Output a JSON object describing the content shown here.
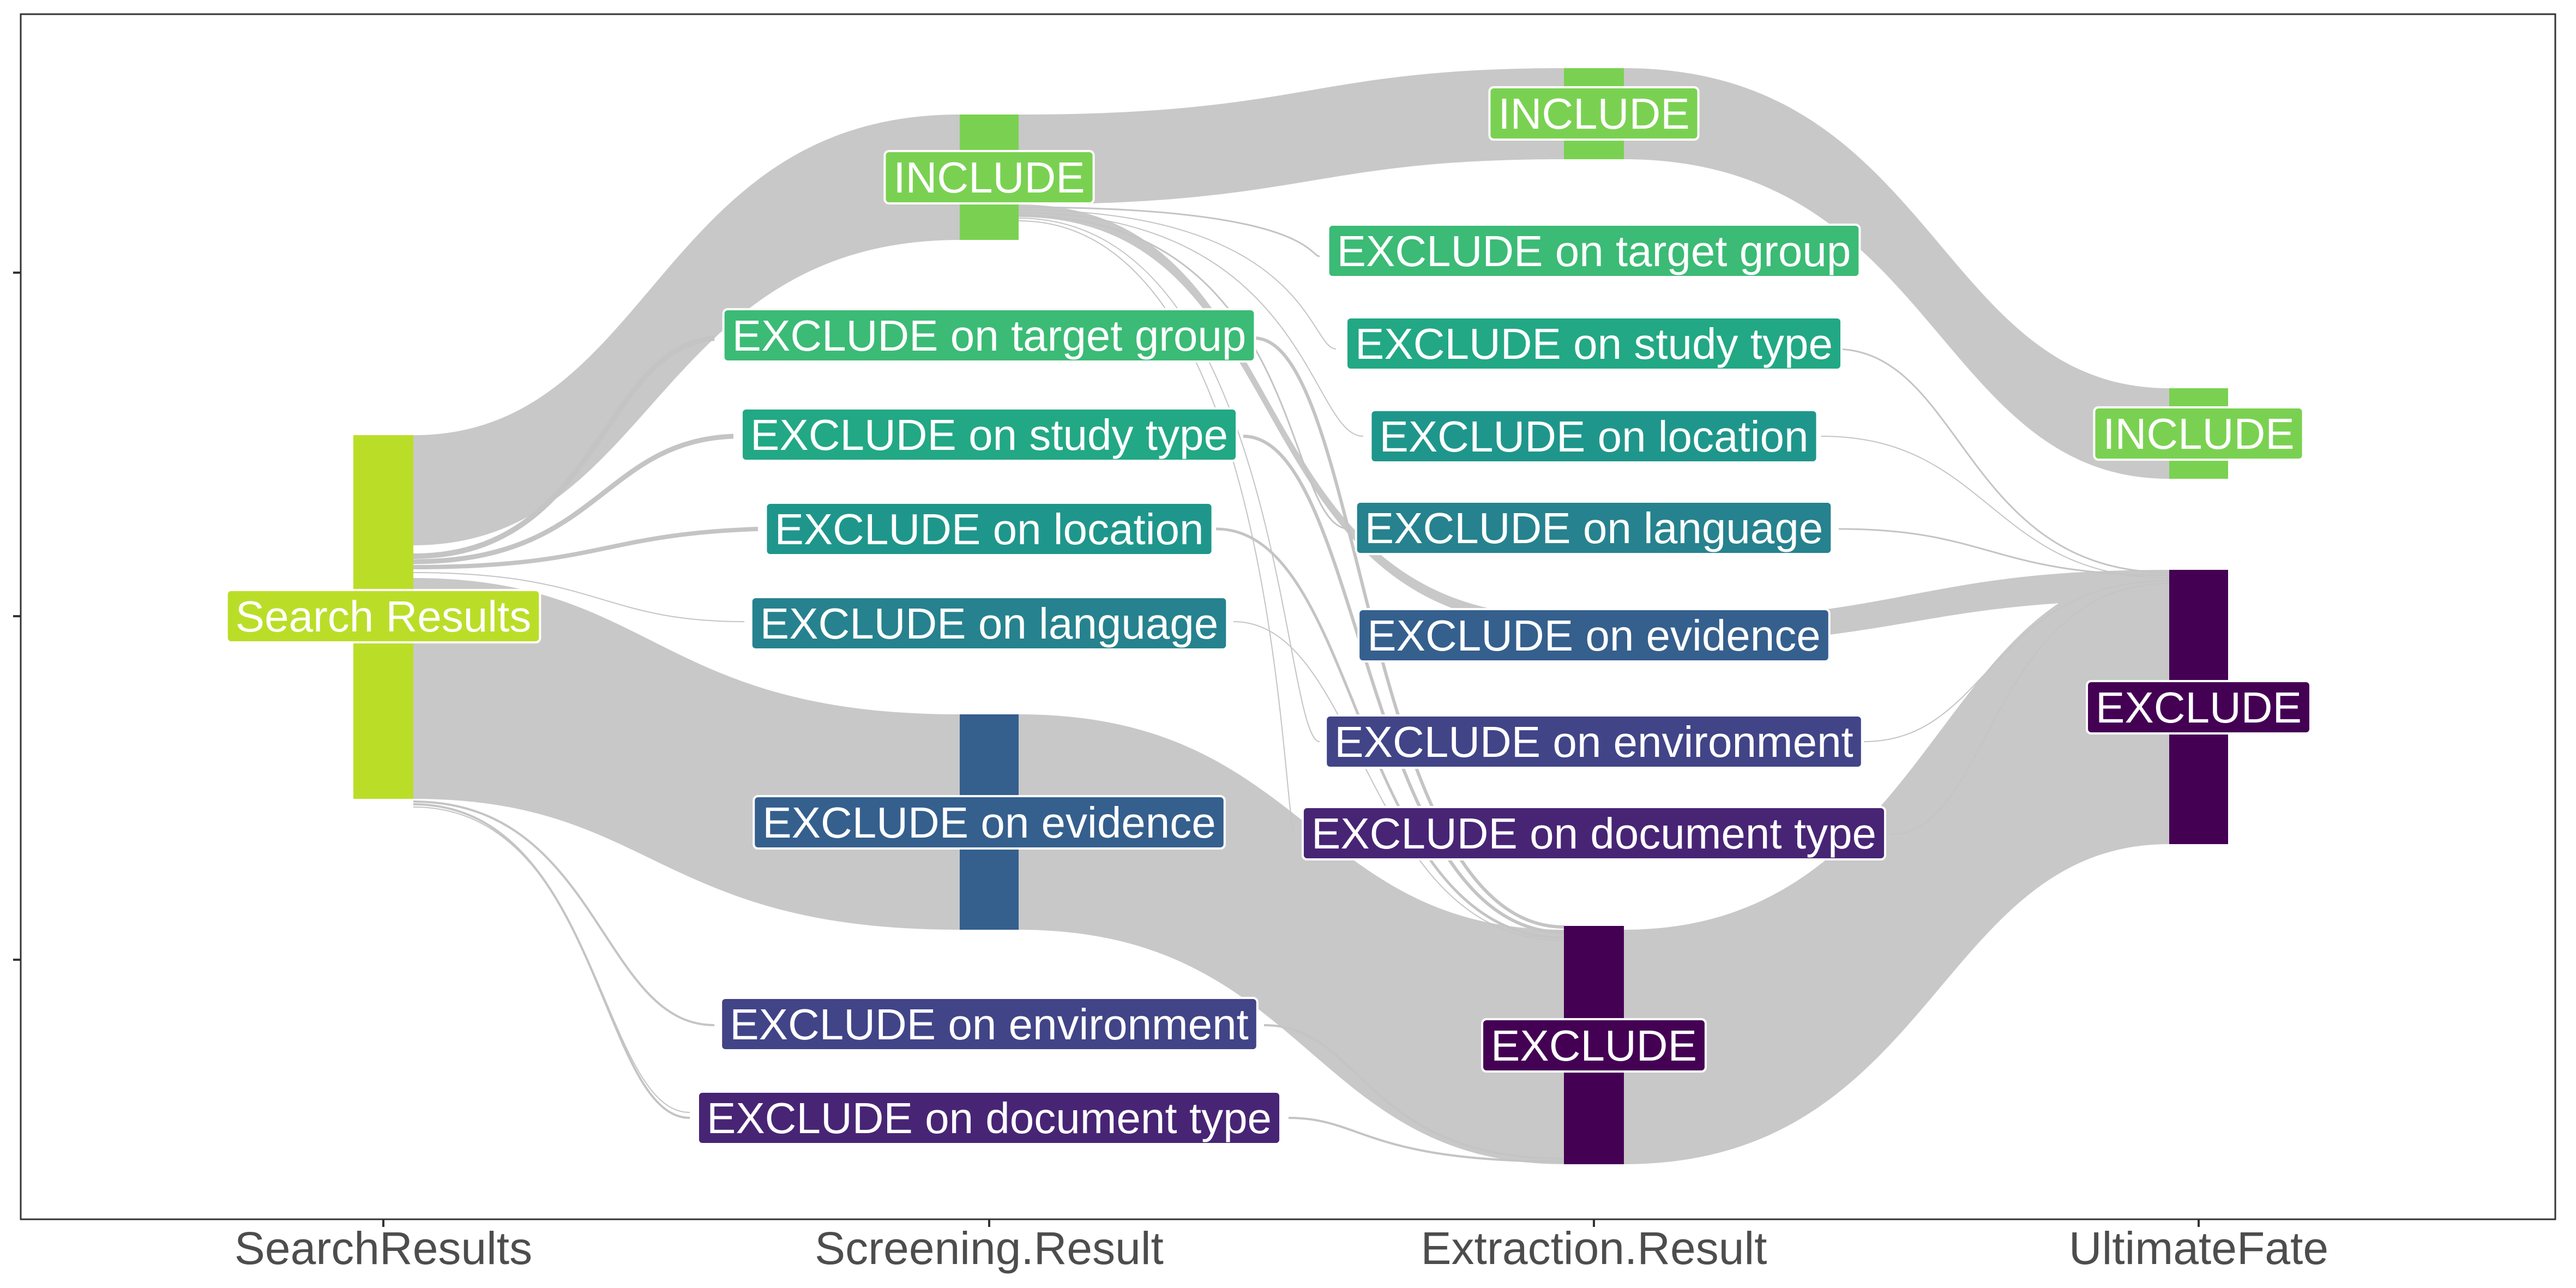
{
  "chart_data": {
    "type": "alluvial",
    "axes": [
      "SearchResults",
      "Screening.Result",
      "Extraction.Result",
      "UltimateFate"
    ],
    "colors": {
      "Search Results": "#bade28",
      "INCLUDE": "#7ad151",
      "EXCLUDE on target group": "#3bbb75",
      "EXCLUDE on study type": "#22a884",
      "EXCLUDE on location": "#1f968b",
      "EXCLUDE on language": "#26828e",
      "EXCLUDE on evidence": "#355f8d",
      "EXCLUDE on environment": "#414487",
      "EXCLUDE on document type": "#482475",
      "EXCLUDE": "#440154"
    },
    "nodes": {
      "search": {
        "label": "Search Results"
      },
      "s_include": {
        "label": "INCLUDE"
      },
      "s_target": {
        "label": "EXCLUDE on target group"
      },
      "s_study": {
        "label": "EXCLUDE on study type"
      },
      "s_location": {
        "label": "EXCLUDE on location"
      },
      "s_language": {
        "label": "EXCLUDE on language"
      },
      "s_evidence": {
        "label": "EXCLUDE on evidence"
      },
      "s_environment": {
        "label": "EXCLUDE on environment"
      },
      "s_document": {
        "label": "EXCLUDE on document type"
      },
      "e_include": {
        "label": "INCLUDE"
      },
      "e_target": {
        "label": "EXCLUDE on target group"
      },
      "e_study": {
        "label": "EXCLUDE on study type"
      },
      "e_location": {
        "label": "EXCLUDE on location"
      },
      "e_language": {
        "label": "EXCLUDE on language"
      },
      "e_evidence": {
        "label": "EXCLUDE on evidence"
      },
      "e_environment": {
        "label": "EXCLUDE on environment"
      },
      "e_document": {
        "label": "EXCLUDE on document type"
      },
      "e_exclude": {
        "label": "EXCLUDE"
      },
      "u_include": {
        "label": "INCLUDE"
      },
      "u_exclude": {
        "label": "EXCLUDE"
      }
    }
  }
}
